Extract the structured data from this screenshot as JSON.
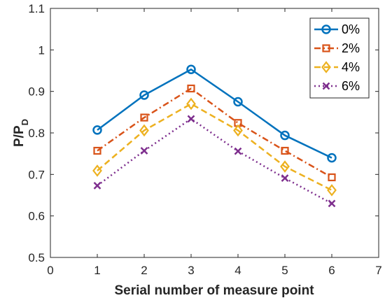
{
  "chart_data": {
    "type": "line",
    "x": [
      1,
      2,
      3,
      4,
      5,
      6
    ],
    "xlabel": "Serial number of measure point",
    "ylabel": "P/P",
    "ylabel_subscript": "D",
    "xlim": [
      0,
      7
    ],
    "ylim": [
      0.5,
      1.1
    ],
    "x_ticks": [
      "0",
      "1",
      "2",
      "3",
      "4",
      "5",
      "6",
      "7"
    ],
    "y_ticks": [
      "0.5",
      "0.6",
      "0.7",
      "0.8",
      "0.9",
      "1",
      "1.1"
    ],
    "grid": false,
    "legend_position": "top-right",
    "series": [
      {
        "name": "0%",
        "values": [
          0.807,
          0.891,
          0.953,
          0.875,
          0.794,
          0.74
        ],
        "color": "#0072BD",
        "line": "solid",
        "marker": "circle"
      },
      {
        "name": "2%",
        "values": [
          0.757,
          0.837,
          0.907,
          0.824,
          0.757,
          0.693
        ],
        "color": "#D95319",
        "line": "dashdot",
        "marker": "square"
      },
      {
        "name": "4%",
        "values": [
          0.709,
          0.806,
          0.87,
          0.806,
          0.719,
          0.662
        ],
        "color": "#EDB120",
        "line": "dashed",
        "marker": "diamond"
      },
      {
        "name": "6%",
        "values": [
          0.673,
          0.757,
          0.834,
          0.756,
          0.691,
          0.63
        ],
        "color": "#7E2F8E",
        "line": "dotted",
        "marker": "x"
      }
    ]
  }
}
